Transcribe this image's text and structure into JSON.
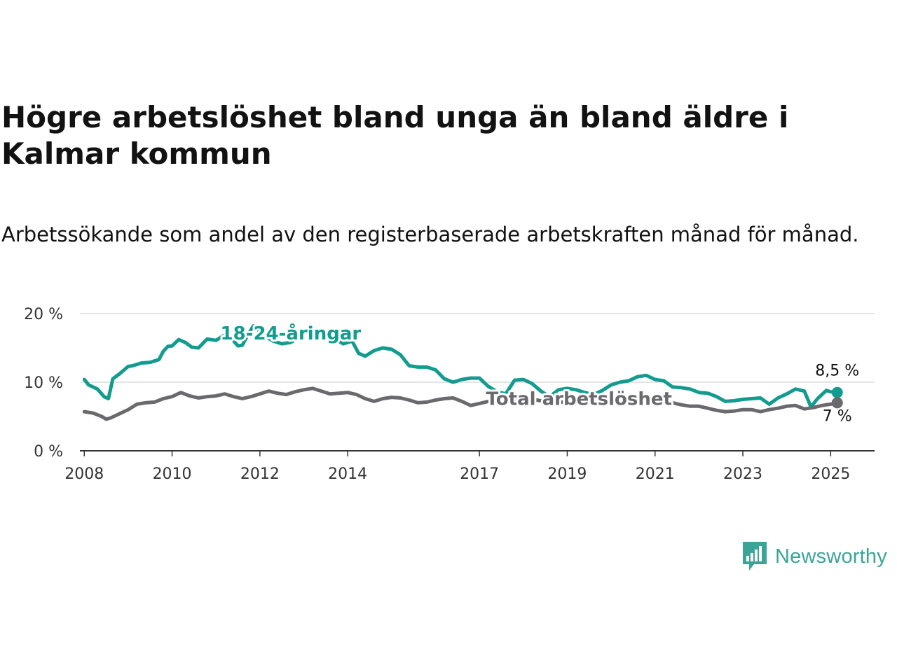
{
  "title": "Högre arbetslöshet bland unga än bland äldre i Kalmar kommun",
  "subtitle": "Arbetssökande som andel av den registerbaserade arbetskraften månad för månad.",
  "brand": {
    "name": "Newsworthy",
    "color": "#3aa597",
    "logo": "bar-chart-icon"
  },
  "chart_data": {
    "type": "line",
    "ylim": [
      0,
      20
    ],
    "xlim": [
      2007.9,
      2026.0
    ],
    "y_ticks": [
      {
        "value": 0,
        "label": "0 %"
      },
      {
        "value": 10,
        "label": "10 %"
      },
      {
        "value": 20,
        "label": "20 %"
      }
    ],
    "x_ticks": [
      {
        "value": 2008,
        "label": "2008"
      },
      {
        "value": 2010,
        "label": "2010"
      },
      {
        "value": 2012,
        "label": "2012"
      },
      {
        "value": 2014,
        "label": "2014"
      },
      {
        "value": 2017,
        "label": "2017"
      },
      {
        "value": 2019,
        "label": "2019"
      },
      {
        "value": 2021,
        "label": "2021"
      },
      {
        "value": 2023,
        "label": "2023"
      },
      {
        "value": 2025,
        "label": "2025"
      }
    ],
    "grid": "horizontal",
    "series": [
      {
        "name": "18-24-åringar",
        "color": "#129c8f",
        "end_label": "8,5 %",
        "x": [
          2008.0,
          2008.1,
          2008.3,
          2008.45,
          2008.55,
          2008.65,
          2008.8,
          2009.0,
          2009.1,
          2009.3,
          2009.5,
          2009.7,
          2009.8,
          2009.9,
          2010.0,
          2010.15,
          2010.3,
          2010.45,
          2010.6,
          2010.8,
          2011.0,
          2011.2,
          2011.35,
          2011.5,
          2011.6,
          2011.7,
          2011.85,
          2012.0,
          2012.15,
          2012.3,
          2012.5,
          2012.7,
          2012.9,
          2013.1,
          2013.3,
          2013.5,
          2013.7,
          2013.9,
          2014.1,
          2014.25,
          2014.4,
          2014.6,
          2014.8,
          2015.0,
          2015.2,
          2015.4,
          2015.6,
          2015.8,
          2016.0,
          2016.2,
          2016.4,
          2016.6,
          2016.8,
          2017.0,
          2017.2,
          2017.4,
          2017.6,
          2017.8,
          2018.0,
          2018.2,
          2018.4,
          2018.6,
          2018.8,
          2019.0,
          2019.2,
          2019.4,
          2019.6,
          2019.8,
          2020.0,
          2020.2,
          2020.4,
          2020.6,
          2020.8,
          2021.0,
          2021.2,
          2021.4,
          2021.6,
          2021.8,
          2022.0,
          2022.2,
          2022.4,
          2022.6,
          2022.8,
          2023.0,
          2023.2,
          2023.4,
          2023.6,
          2023.8,
          2024.0,
          2024.2,
          2024.4,
          2024.55,
          2024.7,
          2024.9,
          2025.0,
          2025.15
        ],
        "y": [
          10.4,
          9.6,
          9.0,
          7.9,
          7.6,
          10.5,
          11.2,
          12.3,
          12.4,
          12.8,
          12.9,
          13.3,
          14.5,
          15.2,
          15.3,
          16.2,
          15.8,
          15.1,
          15.0,
          16.3,
          16.1,
          16.9,
          16.4,
          15.3,
          15.4,
          16.6,
          18.2,
          17.4,
          16.6,
          16.0,
          15.6,
          15.8,
          16.6,
          17.7,
          17.2,
          16.6,
          16.3,
          15.6,
          16.0,
          14.2,
          13.8,
          14.6,
          15.0,
          14.8,
          14.0,
          12.4,
          12.2,
          12.2,
          11.8,
          10.5,
          10.0,
          10.4,
          10.6,
          10.6,
          9.4,
          8.6,
          8.3,
          10.3,
          10.4,
          9.8,
          8.7,
          7.9,
          8.9,
          9.1,
          8.9,
          8.5,
          8.2,
          8.8,
          9.6,
          10.0,
          10.2,
          10.8,
          11.0,
          10.4,
          10.2,
          9.3,
          9.2,
          9.0,
          8.5,
          8.4,
          7.9,
          7.2,
          7.3,
          7.5,
          7.6,
          7.7,
          6.8,
          7.7,
          8.3,
          9.0,
          8.7,
          6.4,
          7.6,
          8.8,
          8.6,
          8.5
        ]
      },
      {
        "name": "Total arbetslöshet",
        "color": "#6a696d",
        "end_label": "7 %",
        "x": [
          2008.0,
          2008.2,
          2008.4,
          2008.5,
          2008.6,
          2008.8,
          2009.0,
          2009.2,
          2009.4,
          2009.6,
          2009.8,
          2010.0,
          2010.2,
          2010.4,
          2010.6,
          2010.8,
          2011.0,
          2011.2,
          2011.4,
          2011.6,
          2011.8,
          2012.0,
          2012.2,
          2012.4,
          2012.6,
          2012.8,
          2013.0,
          2013.2,
          2013.4,
          2013.6,
          2013.8,
          2014.0,
          2014.2,
          2014.4,
          2014.6,
          2014.8,
          2015.0,
          2015.2,
          2015.4,
          2015.6,
          2015.8,
          2016.0,
          2016.2,
          2016.4,
          2016.6,
          2016.8,
          2017.0,
          2017.2,
          2017.4,
          2017.6,
          2017.8,
          2018.0,
          2018.2,
          2018.4,
          2018.6,
          2018.8,
          2019.0,
          2019.2,
          2019.4,
          2019.6,
          2019.8,
          2020.0,
          2020.2,
          2020.4,
          2020.6,
          2020.8,
          2021.0,
          2021.2,
          2021.4,
          2021.6,
          2021.8,
          2022.0,
          2022.2,
          2022.4,
          2022.6,
          2022.8,
          2023.0,
          2023.2,
          2023.4,
          2023.6,
          2023.8,
          2024.0,
          2024.2,
          2024.4,
          2024.6,
          2024.8,
          2025.0,
          2025.15
        ],
        "y": [
          5.7,
          5.5,
          5.0,
          4.6,
          4.8,
          5.4,
          6.0,
          6.8,
          7.0,
          7.1,
          7.6,
          7.9,
          8.5,
          8.0,
          7.7,
          7.9,
          8.0,
          8.3,
          7.9,
          7.6,
          7.9,
          8.3,
          8.7,
          8.4,
          8.2,
          8.6,
          8.9,
          9.1,
          8.7,
          8.3,
          8.4,
          8.5,
          8.2,
          7.6,
          7.2,
          7.6,
          7.8,
          7.7,
          7.4,
          7.0,
          7.1,
          7.4,
          7.6,
          7.7,
          7.2,
          6.6,
          6.9,
          7.2,
          7.4,
          7.5,
          7.6,
          7.7,
          7.5,
          7.3,
          7.2,
          7.0,
          7.2,
          7.4,
          7.3,
          7.0,
          6.9,
          7.1,
          7.4,
          7.5,
          7.5,
          7.6,
          7.4,
          7.2,
          7.0,
          6.7,
          6.5,
          6.5,
          6.2,
          5.9,
          5.7,
          5.8,
          6.0,
          6.0,
          5.7,
          6.0,
          6.2,
          6.5,
          6.6,
          6.1,
          6.3,
          6.6,
          6.8,
          7.0
        ]
      }
    ]
  }
}
